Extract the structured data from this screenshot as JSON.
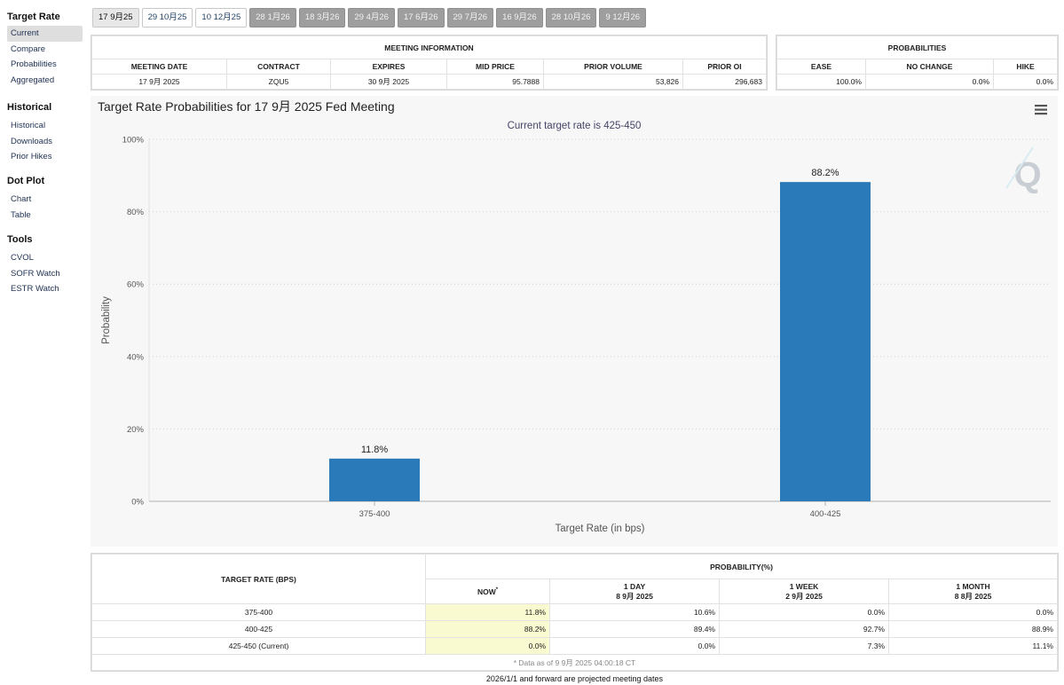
{
  "sidebar": {
    "groups": [
      {
        "title": "Target Rate",
        "items": [
          "Current",
          "Compare",
          "Probabilities",
          "Aggregated"
        ]
      },
      {
        "title": "Historical",
        "items": [
          "Historical",
          "Downloads",
          "Prior Hikes"
        ]
      },
      {
        "title": "Dot Plot",
        "items": [
          "Chart",
          "Table"
        ]
      },
      {
        "title": "Tools",
        "items": [
          "CVOL",
          "SOFR Watch",
          "ESTR Watch"
        ]
      }
    ]
  },
  "tabs": [
    {
      "label": "17 9月25",
      "state": "active"
    },
    {
      "label": "29 10月25",
      "state": "avail"
    },
    {
      "label": "10 12月25",
      "state": "avail"
    },
    {
      "label": "28 1月26",
      "state": "dim"
    },
    {
      "label": "18 3月26",
      "state": "dim"
    },
    {
      "label": "29 4月26",
      "state": "dim"
    },
    {
      "label": "17 6月26",
      "state": "dim"
    },
    {
      "label": "29 7月26",
      "state": "dim"
    },
    {
      "label": "16 9月26",
      "state": "dim"
    },
    {
      "label": "28 10月26",
      "state": "dim"
    },
    {
      "label": "9 12月26",
      "state": "dim"
    }
  ],
  "meeting_info": {
    "title": "MEETING INFORMATION",
    "headers": [
      "MEETING DATE",
      "CONTRACT",
      "EXPIRES",
      "MID PRICE",
      "PRIOR VOLUME",
      "PRIOR OI"
    ],
    "row": [
      "17 9月 2025",
      "ZQU5",
      "30 9月 2025",
      "95.7888",
      "53,826",
      "296,683"
    ]
  },
  "probabilities": {
    "title": "PROBABILITIES",
    "headers": [
      "EASE",
      "NO CHANGE",
      "HIKE"
    ],
    "row": [
      "100.0%",
      "0.0%",
      "0.0%"
    ]
  },
  "chart_menu_icon": "hamburger-icon",
  "chart_logo_icon": "q-logo-icon",
  "chart_data": {
    "type": "bar",
    "title": "Target Rate Probabilities for 17 9月 2025 Fed Meeting",
    "subtitle": "Current target rate is 425-450",
    "categories": [
      "375-400",
      "400-425"
    ],
    "values": [
      11.8,
      88.2
    ],
    "data_labels": [
      "11.8%",
      "88.2%"
    ],
    "xlabel": "Target Rate (in bps)",
    "ylabel": "Probability",
    "ylim": [
      0,
      100
    ],
    "yticks": [
      0,
      20,
      40,
      60,
      80,
      100
    ],
    "ytick_labels": [
      "0%",
      "20%",
      "40%",
      "60%",
      "80%",
      "100%"
    ],
    "grid": true,
    "bar_color": "#2a7ab9"
  },
  "prob_table": {
    "col0_header": "TARGET RATE (BPS)",
    "group_header": "PROBABILITY(%)",
    "sub_headers": [
      {
        "label": "NOW",
        "date": "",
        "mark": "*"
      },
      {
        "label": "1 DAY",
        "date": "8 9月 2025",
        "mark": ""
      },
      {
        "label": "1 WEEK",
        "date": "2 9月 2025",
        "mark": ""
      },
      {
        "label": "1 MONTH",
        "date": "8 8月 2025",
        "mark": ""
      }
    ],
    "rows": [
      [
        "375-400",
        "11.8%",
        "10.6%",
        "0.0%",
        "0.0%"
      ],
      [
        "400-425",
        "88.2%",
        "89.4%",
        "92.7%",
        "88.9%"
      ],
      [
        "425-450 (Current)",
        "0.0%",
        "0.0%",
        "7.3%",
        "11.1%"
      ]
    ],
    "footnote": "* Data as of 9 9月 2025 04:00:18 CT"
  },
  "bottom_note": "2026/1/1 and forward are projected meeting dates"
}
